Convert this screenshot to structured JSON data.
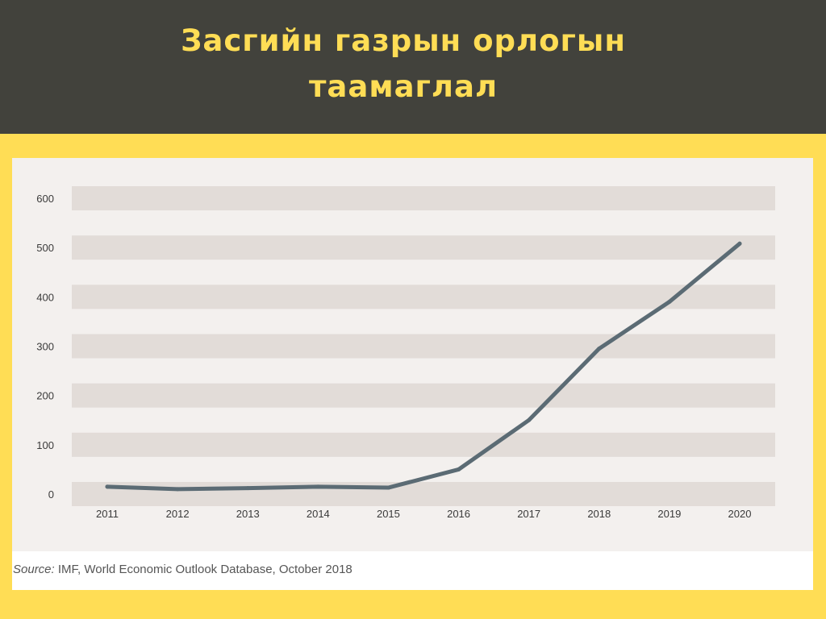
{
  "page": {
    "title": "Засгийн газрын орлогын таамаглал",
    "source_label": "Source:",
    "source_text": "IMF, World Economic Outlook Database, October 2018"
  },
  "colors": {
    "header_bg": "#42423c",
    "accent_yellow": "#ffdd55",
    "band": "#e2dcd8",
    "line": "#5b6b74"
  },
  "chart_data": {
    "type": "line",
    "title": "",
    "xlabel": "",
    "ylabel": "",
    "x": [
      "2011",
      "2012",
      "2013",
      "2014",
      "2015",
      "2016",
      "2017",
      "2018",
      "2019",
      "2020"
    ],
    "series": [
      {
        "values": [
          15,
          10,
          12,
          15,
          13,
          50,
          150,
          295,
          390,
          508
        ]
      }
    ],
    "ylim": [
      0,
      600
    ],
    "yticks": [
      "0",
      "100",
      "200",
      "300",
      "400",
      "500",
      "600"
    ],
    "grid": "horizontal-bands",
    "legend": "none"
  }
}
